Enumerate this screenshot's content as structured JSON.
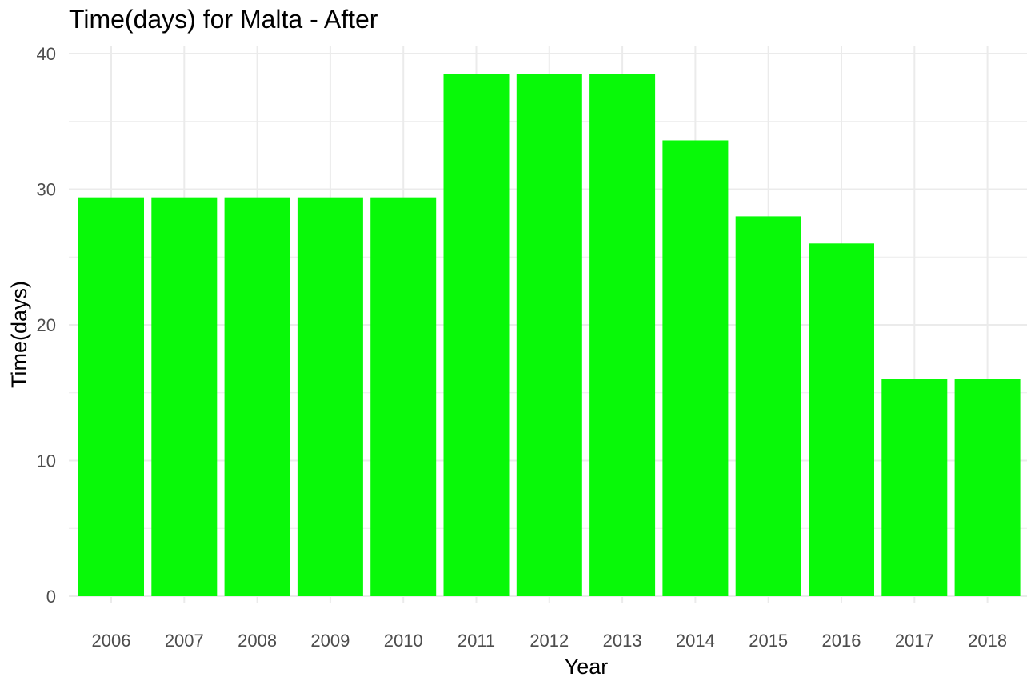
{
  "chart_data": {
    "type": "bar",
    "title": "Time(days) for Malta - After",
    "xlabel": "Year",
    "ylabel": "Time(days)",
    "categories": [
      "2006",
      "2007",
      "2008",
      "2009",
      "2010",
      "2011",
      "2012",
      "2013",
      "2014",
      "2015",
      "2016",
      "2017",
      "2018"
    ],
    "values": [
      29.4,
      29.4,
      29.4,
      29.4,
      29.4,
      38.5,
      38.5,
      38.5,
      33.6,
      28.0,
      26.0,
      16.0,
      16.0
    ],
    "ylim": [
      0,
      40
    ],
    "yticks": [
      0,
      10,
      20,
      30,
      40
    ],
    "grid": true,
    "legend": "none",
    "bar_color": "#08f908",
    "grid_color": "#ebebeb"
  }
}
